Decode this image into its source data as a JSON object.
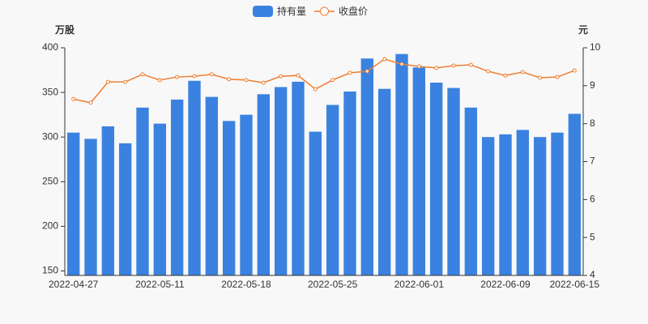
{
  "chart_data": {
    "type": "bar-line",
    "legend": {
      "position": "top"
    },
    "y_label": "万股",
    "y2_label": "元",
    "categories": [
      "2022-04-27",
      null,
      null,
      null,
      null,
      "2022-05-11",
      null,
      null,
      null,
      null,
      "2022-05-18",
      null,
      null,
      null,
      null,
      "2022-05-25",
      null,
      null,
      null,
      null,
      "2022-06-01",
      null,
      null,
      null,
      null,
      "2022-06-09",
      null,
      null,
      null,
      "2022-06-15"
    ],
    "series": [
      {
        "name": "持有量",
        "type": "bar",
        "color": "#3b82e0",
        "values": [
          305,
          298,
          312,
          293,
          333,
          315,
          342,
          363,
          345,
          318,
          325,
          348,
          356,
          362,
          306,
          336,
          351,
          388,
          354,
          393,
          378,
          361,
          355,
          333,
          300,
          303,
          308,
          300,
          305,
          326
        ]
      },
      {
        "name": "收盘价",
        "type": "line",
        "axis": "y2",
        "color": "#ee7d31",
        "values": [
          8.65,
          8.55,
          9.1,
          9.1,
          9.3,
          9.15,
          9.23,
          9.25,
          9.3,
          9.17,
          9.15,
          9.08,
          9.25,
          9.27,
          8.91,
          9.15,
          9.34,
          9.38,
          9.7,
          9.57,
          9.51,
          9.47,
          9.53,
          9.55,
          9.38,
          9.27,
          9.36,
          9.21,
          9.23,
          9.4
        ]
      }
    ],
    "ylim": [
      145,
      400
    ],
    "yticks": [
      150,
      200,
      250,
      300,
      350,
      400
    ],
    "y2lim": [
      4,
      10
    ],
    "y2ticks": [
      4,
      5,
      6,
      7,
      8,
      9,
      10
    ],
    "grid": false
  }
}
